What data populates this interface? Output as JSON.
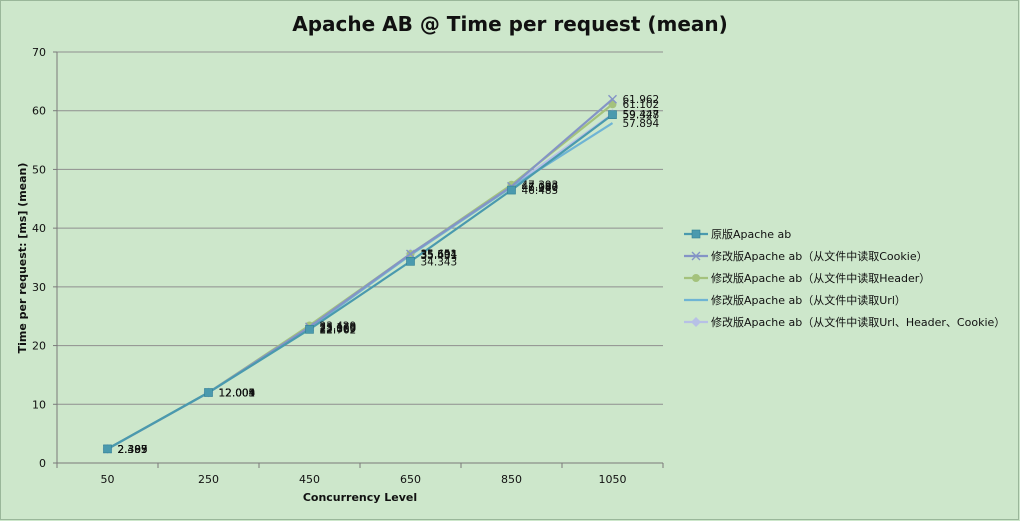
{
  "chart_data": {
    "type": "line",
    "title": "Apache AB @ Time per request (mean)",
    "xlabel": "Concurrency Level",
    "ylabel": "Time per request:  [ms] (mean)",
    "categories": [
      "50",
      "250",
      "450",
      "650",
      "850",
      "1050"
    ],
    "ylim": [
      0,
      70
    ],
    "yticks": [
      0,
      10,
      20,
      30,
      40,
      50,
      60,
      70
    ],
    "grid": true,
    "legend_position": "right",
    "series": [
      {
        "name": "原版Apache ab",
        "color": "#4a9aae",
        "marker": "square",
        "values": [
          2.403,
          12.005,
          22.762,
          34.343,
          46.485,
          59.328
        ],
        "labels": [
          "2.403",
          "12.005",
          "22.762",
          "34.343",
          "46.485",
          "59.328"
        ]
      },
      {
        "name": "修改版Apache ab（从文件中读取Cookie）",
        "color": "#8494c6",
        "marker": "x",
        "values": [
          2.389,
          12.003,
          23.179,
          35.604,
          47.107,
          61.962
        ],
        "labels": [
          "2.389",
          "12.003",
          "23.179",
          "35.604",
          "47.107",
          "61.962"
        ]
      },
      {
        "name": "修改版Apache ab（从文件中读取Header）",
        "color": "#a4c27c",
        "marker": "circle",
        "values": [
          2.393,
          12.004,
          23.429,
          35.591,
          47.393,
          61.102
        ],
        "labels": [
          "2.393",
          "12.004",
          "23.429",
          "35.591",
          "47.393",
          "61.102"
        ]
      },
      {
        "name": "修改版Apache ab（从文件中读取Url）",
        "color": "#6fb4d4",
        "marker": "none",
        "values": [
          2.387,
          12.001,
          23.0,
          35.431,
          46.98,
          57.894
        ],
        "labels": [
          "2.387",
          "12.001",
          "23.000",
          "35.431",
          "46.980",
          "57.894"
        ]
      },
      {
        "name": "修改版Apache ab（从文件中读取Url、Header、Cookie）",
        "color": "#b7c0e6",
        "marker": "diamond",
        "values": [
          2.395,
          12.009,
          22.869,
          35.651,
          47.04,
          59.447
        ],
        "labels": [
          "2.395",
          "12.009",
          "22.869",
          "35.651",
          "47.040",
          "59.447"
        ]
      }
    ]
  }
}
